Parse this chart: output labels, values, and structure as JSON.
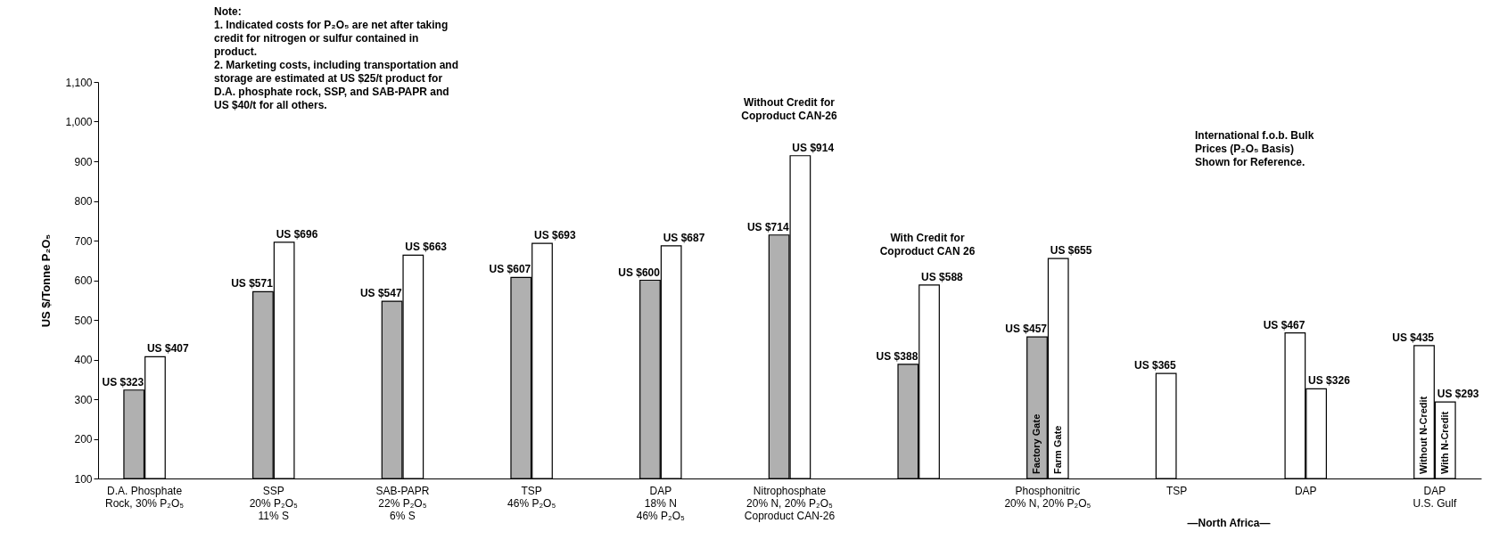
{
  "chart_data": {
    "type": "bar",
    "categories": [
      "D.A. Phosphate\nRock, 30% P₂O₅",
      "SSP\n20% P₂O₅\n11% S",
      "SAB-PAPR\n22% P₂O₅\n6% S",
      "TSP\n46% P₂O₅",
      "DAP\n18% N\n46% P₂O₅",
      "Nitrophosphate\n20% N, 20% P₂O₅\nCoproduct CAN-26",
      null,
      "Phosphonitric\n20% N, 20% P₂O₅",
      "TSP",
      "DAP",
      "DAP\nU.S. Gulf"
    ],
    "series": [
      {
        "name": "Factory Gate",
        "color": "#b0b0b0",
        "values": [
          323,
          571,
          547,
          607,
          600,
          714,
          388,
          457,
          null,
          null,
          null
        ],
        "value_labels": [
          "US $323",
          "US $571",
          "US $547",
          "US $607",
          "US $600",
          "US $714",
          "US $388",
          "US $457",
          null,
          null,
          null
        ]
      },
      {
        "name": "Farm Gate",
        "color": "#ffffff",
        "values": [
          407,
          696,
          663,
          693,
          687,
          914,
          588,
          655,
          null,
          null,
          null
        ],
        "value_labels": [
          "US $407",
          "US $696",
          "US $663",
          "US $693",
          "US $687",
          "US $914",
          "US $588",
          "US $655",
          null,
          null,
          null
        ]
      },
      {
        "name": "Without N-Credit",
        "color": "#ffffff",
        "values": [
          null,
          null,
          null,
          null,
          null,
          null,
          null,
          null,
          365,
          467,
          435
        ],
        "value_labels": [
          null,
          null,
          null,
          null,
          null,
          null,
          null,
          null,
          "US $365",
          "US $467",
          "US $435"
        ]
      },
      {
        "name": "With N-Credit",
        "color": "#ffffff",
        "values": [
          null,
          null,
          null,
          null,
          null,
          null,
          null,
          null,
          null,
          326,
          293
        ],
        "value_labels": [
          null,
          null,
          null,
          null,
          null,
          null,
          null,
          null,
          null,
          "US $326",
          "US $293"
        ]
      }
    ],
    "ylabel": "US $/Tonne P₂O₅",
    "ylim": [
      100,
      1100
    ],
    "yticks": [
      100,
      200,
      300,
      400,
      500,
      600,
      700,
      800,
      900,
      {
        "value": 1000,
        "label": "1,000"
      },
      {
        "value": 1100,
        "label": "1,100"
      }
    ],
    "annotations": [
      "Note:\n1. Indicated costs for P₂O₅ are net after taking\n    credit for nitrogen or sulfur contained in\n    product.\n2. Marketing costs, including transportation and\n    storage are estimated at US $25/t product for\n    D.A. phosphate rock, SSP, and SAB-PAPR and\n    US $40/t for all others.",
      "Without Credit for\nCoproduct CAN-26",
      "With Credit for\nCoproduct CAN 26",
      "International f.o.b. Bulk\nPrices (P₂O₅ Basis)\nShown for Reference.",
      "—North Africa—"
    ],
    "grid": false
  }
}
